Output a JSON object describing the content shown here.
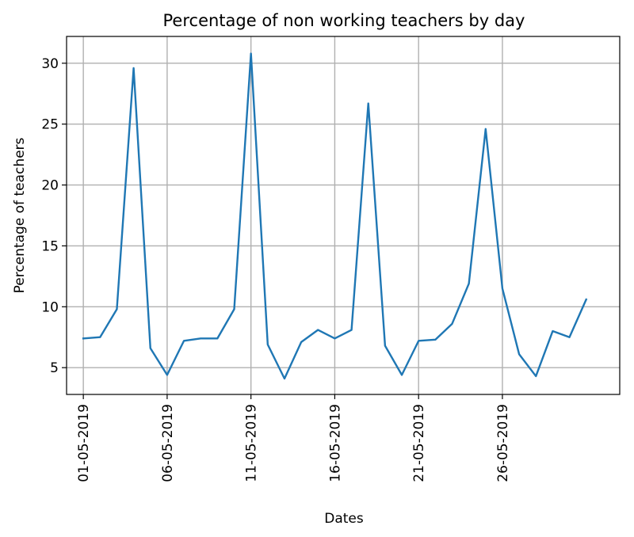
{
  "chart_data": {
    "type": "line",
    "title": "Percentage of non working teachers by day",
    "xlabel": "Dates",
    "ylabel": "Percentage of teachers",
    "grid": true,
    "x": [
      "01-05-2019",
      "02-05-2019",
      "03-05-2019",
      "04-05-2019",
      "05-05-2019",
      "06-05-2019",
      "07-05-2019",
      "08-05-2019",
      "09-05-2019",
      "10-05-2019",
      "11-05-2019",
      "12-05-2019",
      "13-05-2019",
      "14-05-2019",
      "15-05-2019",
      "16-05-2019",
      "17-05-2019",
      "18-05-2019",
      "19-05-2019",
      "20-05-2019",
      "21-05-2019",
      "22-05-2019",
      "23-05-2019",
      "24-05-2019",
      "25-05-2019",
      "26-05-2019",
      "27-05-2019",
      "28-05-2019",
      "29-05-2019",
      "30-05-2019",
      "31-05-2019"
    ],
    "x_ticks": [
      "01-05-2019",
      "06-05-2019",
      "11-05-2019",
      "16-05-2019",
      "21-05-2019",
      "26-05-2019"
    ],
    "xlim": [
      "30-04-2019",
      "02-06-2019"
    ],
    "ylim": [
      2.8,
      32.2
    ],
    "y_ticks": [
      5,
      10,
      15,
      20,
      25,
      30
    ],
    "series": [
      {
        "color": "#1f77b4",
        "values": [
          7.4,
          7.5,
          9.8,
          29.6,
          6.6,
          4.4,
          7.2,
          7.4,
          7.4,
          9.8,
          30.8,
          6.9,
          4.1,
          7.1,
          8.1,
          7.4,
          8.1,
          26.7,
          6.8,
          4.4,
          7.2,
          7.3,
          8.6,
          11.9,
          24.6,
          11.5,
          6.1,
          4.3,
          8.0,
          7.5,
          10.6
        ]
      }
    ]
  }
}
